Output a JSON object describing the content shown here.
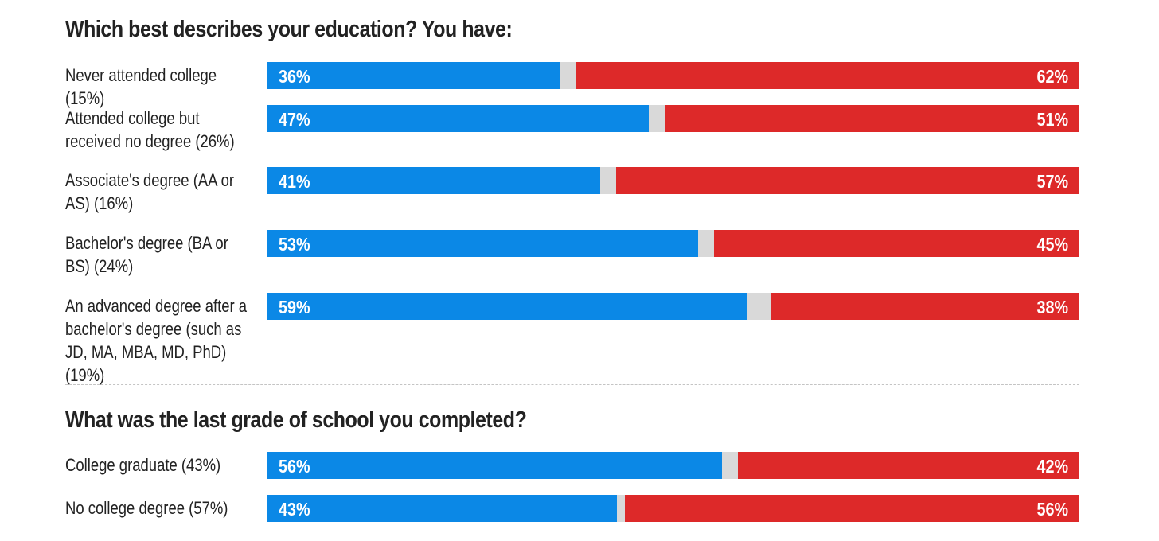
{
  "chart_data": [
    {
      "type": "bar",
      "orientation": "horizontal-stacked",
      "title": "Which best describes your education? You have:",
      "categories": [
        "Never attended college (15%)",
        "Attended college but received no degree (26%)",
        "Associate's degree (AA or AS) (16%)",
        "Bachelor's degree (BA or BS) (24%)",
        "An advanced degree after a bachelor's degree (such as JD, MA, MBA, MD, PhD) (19%)"
      ],
      "series": [
        {
          "values": [
            36,
            47,
            41,
            53,
            59
          ],
          "labels": [
            "36%",
            "47%",
            "41%",
            "53%",
            "59%"
          ],
          "color": "#0b88e6"
        },
        {
          "values": [
            2,
            2,
            2,
            2,
            3
          ],
          "color": "#d9d9d9"
        },
        {
          "values": [
            62,
            51,
            57,
            45,
            38
          ],
          "labels": [
            "62%",
            "51%",
            "57%",
            "45%",
            "38%"
          ],
          "color": "#dd2929"
        }
      ],
      "xlim": [
        0,
        100
      ]
    },
    {
      "type": "bar",
      "orientation": "horizontal-stacked",
      "title": "What was the last grade of school you completed?",
      "categories": [
        "College graduate (43%)",
        "No college degree (57%)"
      ],
      "series": [
        {
          "values": [
            56,
            43
          ],
          "labels": [
            "56%",
            "43%"
          ],
          "color": "#0b88e6"
        },
        {
          "values": [
            2,
            1
          ],
          "color": "#d9d9d9"
        },
        {
          "values": [
            42,
            56
          ],
          "labels": [
            "42%",
            "56%"
          ],
          "color": "#dd2929"
        }
      ],
      "xlim": [
        0,
        100
      ]
    }
  ]
}
